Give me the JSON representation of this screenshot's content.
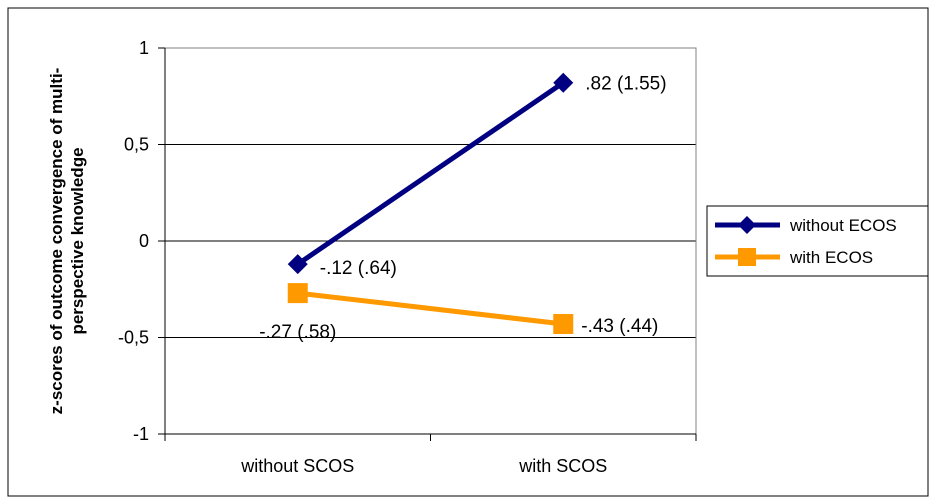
{
  "chart_data": {
    "type": "line",
    "categories": [
      "without SCOS",
      "with SCOS"
    ],
    "series": [
      {
        "name": "without ECOS",
        "values": [
          -0.12,
          0.82
        ],
        "labels": [
          "-.12 (.64)",
          ".82 (1.55)"
        ],
        "color": "#000080",
        "marker": "diamond"
      },
      {
        "name": "with ECOS",
        "values": [
          -0.27,
          -0.43
        ],
        "labels": [
          "-.27 (.58)",
          "-.43 (.44)"
        ],
        "color": "#FF9900",
        "marker": "square"
      }
    ],
    "ylim": [
      -1,
      1
    ],
    "yticks": [
      1,
      0.5,
      0,
      -0.5,
      -1
    ],
    "ytick_labels": [
      "1",
      "0,5",
      "0",
      "-0,5",
      "-1"
    ],
    "ylabel_lines": [
      "z-scores of outcome convergence of multi-",
      "perspective knowledge"
    ],
    "xlabel": "",
    "title": "",
    "grid": true,
    "legend_position": "right"
  }
}
